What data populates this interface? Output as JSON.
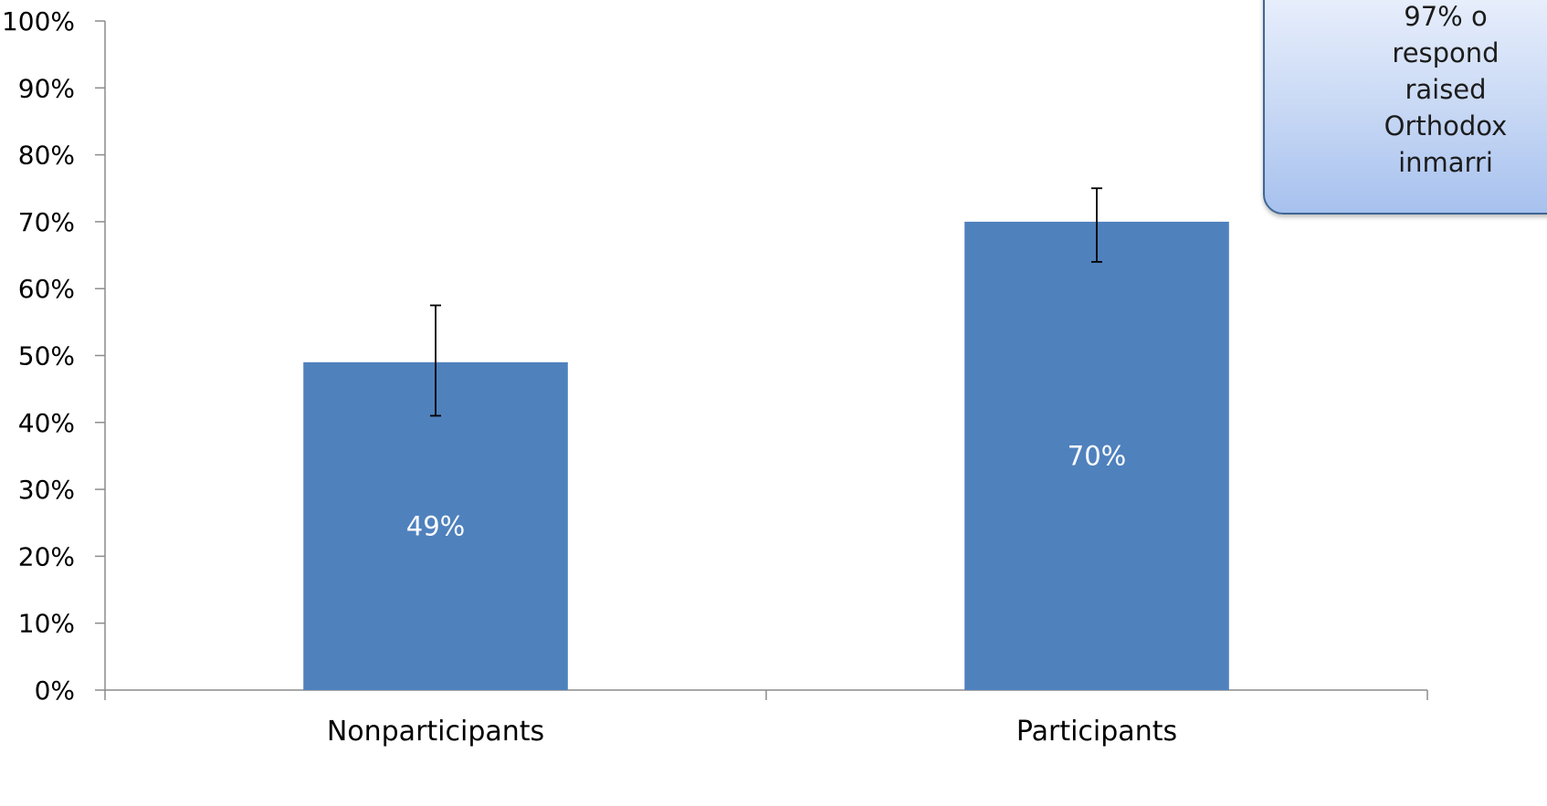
{
  "chart_data": {
    "type": "bar",
    "categories": [
      "Nonparticipants",
      "Participants"
    ],
    "series": [
      {
        "values": [
          49,
          70
        ],
        "error_bars": [
          [
            41,
            57.5
          ],
          [
            64,
            75
          ]
        ],
        "color": "#4f81bd"
      }
    ],
    "data_labels": [
      "49%",
      "70%"
    ],
    "y_tick_labels": [
      "0%",
      "10%",
      "20%",
      "30%",
      "40%",
      "50%",
      "60%",
      "70%",
      "80%",
      "90%",
      "100%"
    ],
    "ylim": [
      0,
      100
    ],
    "title": "",
    "xlabel": "",
    "ylabel": "",
    "grid": false,
    "legend": "none"
  },
  "callout": {
    "lines": [
      "97% o",
      "respond",
      "raised",
      "Orthodox",
      "inmarri"
    ]
  },
  "colors": {
    "bar": "#4f81bd",
    "axis": "#8c8c8c",
    "error_bar": "#000000",
    "data_label": "#ffffff"
  }
}
